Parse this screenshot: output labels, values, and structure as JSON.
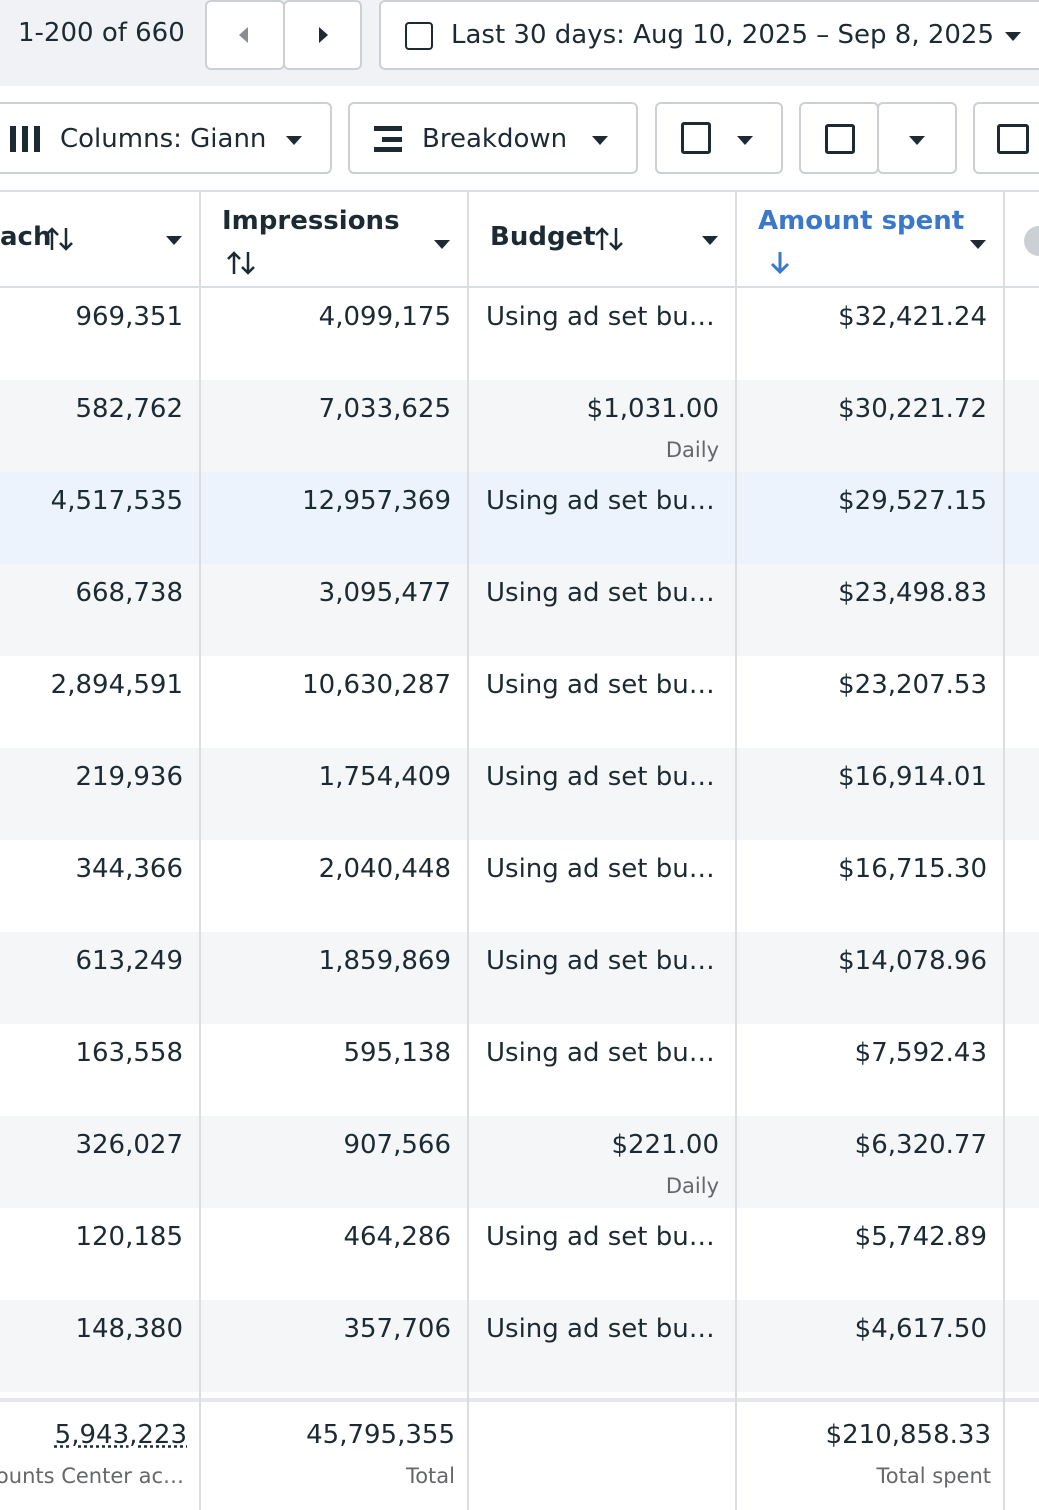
{
  "toolbar": {
    "range": "1-200 of 660",
    "date": "Last 30 days: Aug 10, 2025 – Sep 8, 2025",
    "columns": "Columns: Giann",
    "breakdown": "Breakdown"
  },
  "table": {
    "headers": [
      "ach",
      "Impressions",
      "Budget",
      "Amount spent"
    ],
    "rows": [
      {
        "reach": "969,351",
        "impressions": "4,099,175",
        "budget": "Using ad set bu…",
        "amount_spent": "$32,421.24"
      },
      {
        "reach": "582,762",
        "impressions": "7,033,625",
        "budget": "$1,031.00",
        "budget_period": "Daily",
        "amount_spent": "$30,221.72"
      },
      {
        "reach": "4,517,535",
        "impressions": "12,957,369",
        "budget": "Using ad set bu…",
        "amount_spent": "$29,527.15"
      },
      {
        "reach": "668,738",
        "impressions": "3,095,477",
        "budget": "Using ad set bu…",
        "amount_spent": "$23,498.83"
      },
      {
        "reach": "2,894,591",
        "impressions": "10,630,287",
        "budget": "Using ad set bu…",
        "amount_spent": "$23,207.53"
      },
      {
        "reach": "219,936",
        "impressions": "1,754,409",
        "budget": "Using ad set bu…",
        "amount_spent": "$16,914.01"
      },
      {
        "reach": "344,366",
        "impressions": "2,040,448",
        "budget": "Using ad set bu…",
        "amount_spent": "$16,715.30"
      },
      {
        "reach": "613,249",
        "impressions": "1,859,869",
        "budget": "Using ad set bu…",
        "amount_spent": "$14,078.96"
      },
      {
        "reach": "163,558",
        "impressions": "595,138",
        "budget": "Using ad set bu…",
        "amount_spent": "$7,592.43"
      },
      {
        "reach": "326,027",
        "impressions": "907,566",
        "budget": "$221.00",
        "budget_period": "Daily",
        "amount_spent": "$6,320.77"
      },
      {
        "reach": "120,185",
        "impressions": "464,286",
        "budget": "Using ad set bu…",
        "amount_spent": "$5,742.89"
      },
      {
        "reach": "148,380",
        "impressions": "357,706",
        "budget": "Using ad set bu…",
        "amount_spent": "$4,617.50"
      }
    ],
    "totals": {
      "reach": "5,943,223",
      "reach_label": "ounts Center ac…",
      "impressions": "45,795,355",
      "impressions_label": "Total",
      "amount_spent": "$210,858.33",
      "amount_spent_label": "Total spent"
    }
  }
}
